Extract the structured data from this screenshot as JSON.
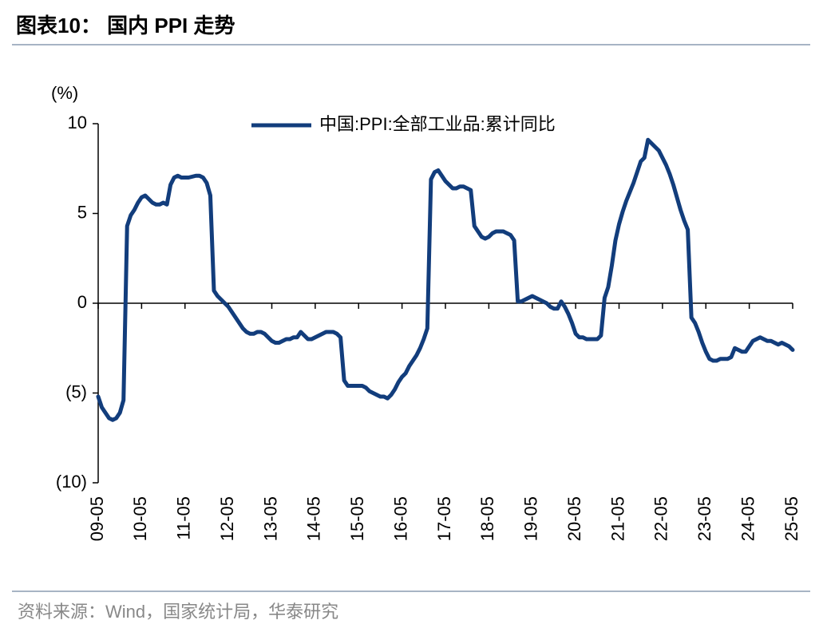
{
  "chart_data": {
    "type": "line",
    "title": "图表10： 国内 PPI 走势",
    "y_label": "(%)",
    "source": "资料来源：Wind，国家统计局，华泰研究",
    "legend_position": "top",
    "grid": false,
    "ylim": [
      -10,
      10
    ],
    "yticks": [
      {
        "value": 10,
        "label": "10"
      },
      {
        "value": 5,
        "label": "5"
      },
      {
        "value": 0,
        "label": "0"
      },
      {
        "value": -5,
        "label": "(5)"
      },
      {
        "value": -10,
        "label": "(10)"
      }
    ],
    "categories": [
      "09-05",
      null,
      null,
      null,
      null,
      null,
      null,
      null,
      null,
      null,
      null,
      null,
      "10-05",
      null,
      null,
      null,
      null,
      null,
      null,
      null,
      null,
      null,
      null,
      null,
      "11-05",
      null,
      null,
      null,
      null,
      null,
      null,
      null,
      null,
      null,
      null,
      null,
      "12-05",
      null,
      null,
      null,
      null,
      null,
      null,
      null,
      null,
      null,
      null,
      null,
      "13-05",
      null,
      null,
      null,
      null,
      null,
      null,
      null,
      null,
      null,
      null,
      null,
      "14-05",
      null,
      null,
      null,
      null,
      null,
      null,
      null,
      null,
      null,
      null,
      null,
      "15-05",
      null,
      null,
      null,
      null,
      null,
      null,
      null,
      null,
      null,
      null,
      null,
      "16-05",
      null,
      null,
      null,
      null,
      null,
      null,
      null,
      null,
      null,
      null,
      null,
      "17-05",
      null,
      null,
      null,
      null,
      null,
      null,
      null,
      null,
      null,
      null,
      null,
      "18-05",
      null,
      null,
      null,
      null,
      null,
      null,
      null,
      null,
      null,
      null,
      null,
      "19-05",
      null,
      null,
      null,
      null,
      null,
      null,
      null,
      null,
      null,
      null,
      null,
      "20-05",
      null,
      null,
      null,
      null,
      null,
      null,
      null,
      null,
      null,
      null,
      null,
      "21-05",
      null,
      null,
      null,
      null,
      null,
      null,
      null,
      null,
      null,
      null,
      null,
      "22-05",
      null,
      null,
      null,
      null,
      null,
      null,
      null,
      null,
      null,
      null,
      null,
      "23-05",
      null,
      null,
      null,
      null,
      null,
      null,
      null,
      null,
      null,
      null,
      null,
      "24-05",
      null,
      null,
      null,
      null,
      null,
      null,
      null,
      null,
      null,
      null,
      null,
      "25-05"
    ],
    "series": [
      {
        "name": "中国:PPI:全部工业品:累计同比",
        "color": "#123d7c",
        "values": [
          -5.2,
          -5.8,
          -6.1,
          -6.4,
          -6.5,
          -6.4,
          -6.1,
          -5.4,
          4.3,
          4.9,
          5.2,
          5.6,
          5.9,
          6.0,
          5.8,
          5.6,
          5.5,
          5.5,
          5.6,
          5.5,
          6.6,
          7.0,
          7.1,
          7.0,
          7.0,
          7.0,
          7.05,
          7.1,
          7.1,
          7.0,
          6.7,
          6.0,
          0.7,
          0.4,
          0.2,
          0.0,
          -0.2,
          -0.5,
          -0.8,
          -1.1,
          -1.4,
          -1.6,
          -1.7,
          -1.7,
          -1.6,
          -1.6,
          -1.7,
          -1.9,
          -2.1,
          -2.2,
          -2.2,
          -2.1,
          -2.0,
          -2.0,
          -1.9,
          -1.9,
          -1.6,
          -1.8,
          -2.0,
          -2.0,
          -1.9,
          -1.8,
          -1.7,
          -1.6,
          -1.6,
          -1.6,
          -1.7,
          -1.9,
          -4.3,
          -4.6,
          -4.6,
          -4.6,
          -4.6,
          -4.6,
          -4.7,
          -4.9,
          -5.0,
          -5.1,
          -5.2,
          -5.2,
          -5.3,
          -5.1,
          -4.8,
          -4.4,
          -4.1,
          -3.9,
          -3.5,
          -3.2,
          -2.9,
          -2.5,
          -2.0,
          -1.4,
          6.9,
          7.3,
          7.4,
          7.1,
          6.8,
          6.6,
          6.4,
          6.4,
          6.5,
          6.5,
          6.4,
          6.3,
          4.3,
          4.0,
          3.7,
          3.6,
          3.7,
          3.9,
          4.0,
          4.0,
          4.0,
          3.9,
          3.8,
          3.5,
          0.1,
          0.1,
          0.2,
          0.3,
          0.4,
          0.3,
          0.2,
          0.1,
          0.0,
          -0.2,
          -0.3,
          -0.3,
          0.1,
          -0.2,
          -0.6,
          -1.1,
          -1.7,
          -1.9,
          -1.9,
          -2.0,
          -2.0,
          -2.0,
          -2.0,
          -1.8,
          0.3,
          0.9,
          2.1,
          3.5,
          4.4,
          5.1,
          5.7,
          6.2,
          6.7,
          7.3,
          7.9,
          8.1,
          9.1,
          8.9,
          8.7,
          8.5,
          8.1,
          7.7,
          7.2,
          6.6,
          5.9,
          5.2,
          4.6,
          4.1,
          -0.8,
          -1.1,
          -1.6,
          -2.2,
          -2.7,
          -3.1,
          -3.2,
          -3.2,
          -3.1,
          -3.1,
          -3.1,
          -3.0,
          -2.5,
          -2.6,
          -2.7,
          -2.7,
          -2.4,
          -2.1,
          -2.0,
          -1.9,
          -2.0,
          -2.1,
          -2.1,
          -2.2,
          -2.3,
          -2.2,
          -2.3,
          -2.4,
          -2.6
        ]
      }
    ]
  }
}
